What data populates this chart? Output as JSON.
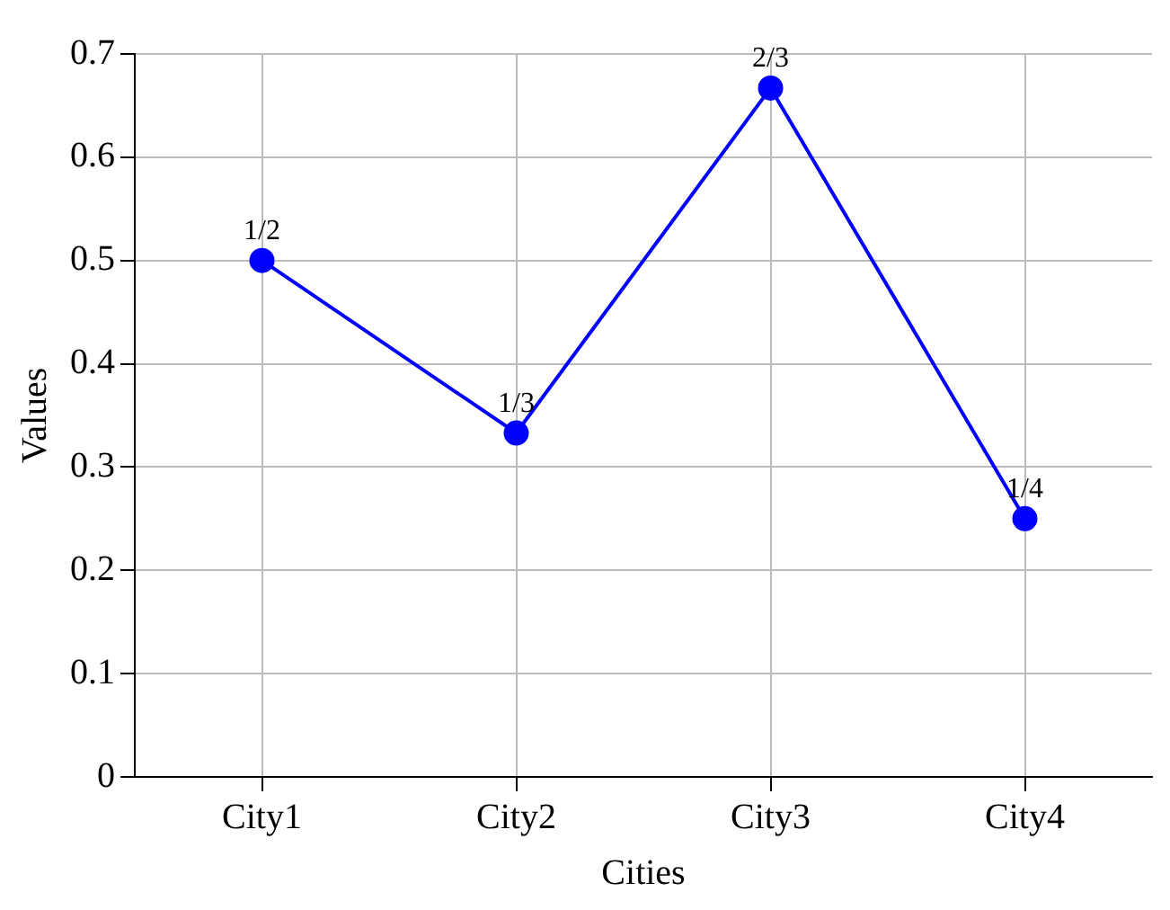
{
  "chart_data": {
    "type": "line",
    "xlabel": "Cities",
    "ylabel": "Values",
    "categories": [
      "City1",
      "City2",
      "City3",
      "City4"
    ],
    "series": [
      {
        "color": "#0000ff",
        "values": [
          0.5,
          0.333,
          0.667,
          0.25
        ],
        "value_labels": [
          "1/2",
          "1/3",
          "2/3",
          "1/4"
        ]
      }
    ],
    "ylim": [
      0,
      0.7
    ],
    "yticks": [
      0,
      0.1,
      0.2,
      0.3,
      0.4,
      0.5,
      0.6,
      0.7
    ],
    "grid": true,
    "marker": "circle",
    "line_style": "solid",
    "legend": false
  }
}
